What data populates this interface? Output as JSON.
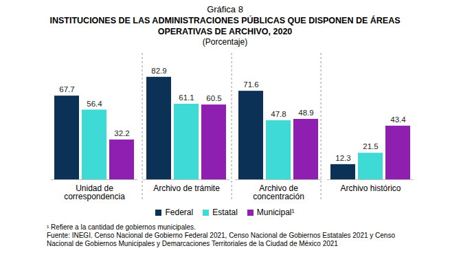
{
  "chart_data": {
    "type": "bar",
    "figure_label": "Gráfica 8",
    "title": "INSTITUCIONES DE LAS ADMINISTRACIONES PÚBLICAS QUE DISPONEN DE ÁREAS OPERATIVAS DE ARCHIVO, 2020",
    "subtitle": "(Porcentaje)",
    "categories": [
      "Unidad de correspondencia",
      "Archivo de trámite",
      "Archivo de concentración",
      "Archivo histórico"
    ],
    "series": [
      {
        "name": "Federal",
        "color": "#0c3157",
        "values": [
          67.7,
          82.9,
          71.6,
          12.3
        ]
      },
      {
        "name": "Estatal",
        "color": "#3ddad6",
        "values": [
          56.4,
          61.1,
          47.8,
          21.5
        ]
      },
      {
        "name": "Municipal¹",
        "color": "#8e1fb0",
        "values": [
          32.2,
          60.5,
          48.9,
          43.4
        ]
      }
    ],
    "ylim": [
      0,
      100
    ],
    "tick_labels": "x",
    "data_labels": true,
    "legend": "bottom",
    "notes": [
      "¹ Refiere a la cantidad de gobiernos municipales."
    ],
    "source": "Fuente: INEGI. Censo Nacional de Gobierno Federal 2021, Censo Nacional de Gobiernos Estatales 2021 y Censo Nacional de Gobiernos Municipales y Demarcaciones Territoriales de la Ciudad de México 2021"
  }
}
